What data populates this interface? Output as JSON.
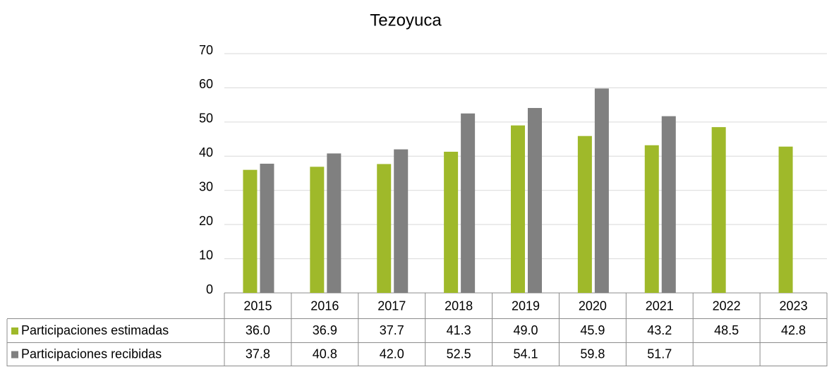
{
  "chart_data": {
    "type": "bar",
    "title": "Tezoyuca",
    "categories": [
      "2015",
      "2016",
      "2017",
      "2018",
      "2019",
      "2020",
      "2021",
      "2022",
      "2023"
    ],
    "series": [
      {
        "name": "Participaciones estimadas",
        "color": "#9fb92a",
        "values": [
          36.0,
          36.9,
          37.7,
          41.3,
          49.0,
          45.9,
          43.2,
          48.5,
          42.8
        ],
        "value_labels": [
          "36.0",
          "36.9",
          "37.7",
          "41.3",
          "49.0",
          "45.9",
          "43.2",
          "48.5",
          "42.8"
        ]
      },
      {
        "name": "Participaciones recibidas",
        "color": "#808080",
        "values": [
          37.8,
          40.8,
          42.0,
          52.5,
          54.1,
          59.8,
          51.7,
          null,
          null
        ],
        "value_labels": [
          "37.8",
          "40.8",
          "42.0",
          "52.5",
          "54.1",
          "59.8",
          "51.7",
          null,
          null
        ]
      }
    ],
    "ylim": [
      0,
      70
    ],
    "yticks": [
      0,
      10,
      20,
      30,
      40,
      50,
      60,
      70
    ],
    "grid": true
  }
}
